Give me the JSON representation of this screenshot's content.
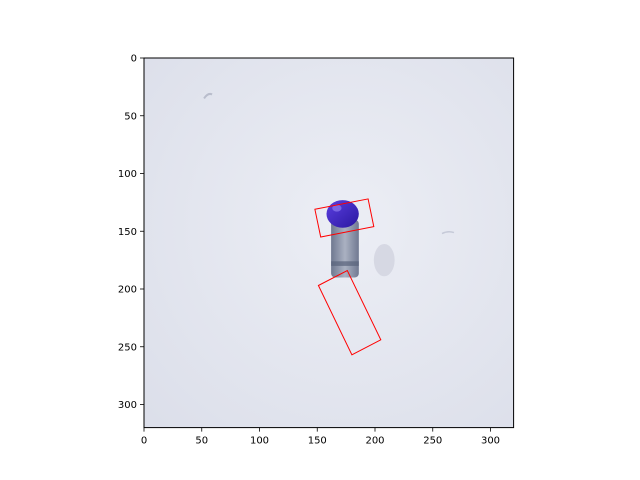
{
  "chart_data": {
    "type": "image",
    "title": "",
    "xlabel": "",
    "ylabel": "",
    "xlim": [
      0,
      320
    ],
    "ylim": [
      320,
      0
    ],
    "x_ticks": [
      0,
      50,
      100,
      150,
      200,
      250,
      300
    ],
    "y_ticks": [
      0,
      50,
      100,
      150,
      200,
      250,
      300
    ],
    "grid": false,
    "image_content": "photo of a small bottle with a blue cap standing on a white surface",
    "colors": {
      "background": "#e4e6ee",
      "bottle_cap": "#3a1fc4",
      "bottle_body": "#8b93a6",
      "box_stroke": "#ff0000"
    },
    "boxes": [
      {
        "name": "bottle-cap-box",
        "corners": [
          [
            148,
            131
          ],
          [
            194,
            122
          ],
          [
            199,
            146
          ],
          [
            153,
            155
          ]
        ]
      },
      {
        "name": "target-region-box",
        "corners": [
          [
            151,
            197
          ],
          [
            176,
            184
          ],
          [
            205,
            244
          ],
          [
            180,
            257
          ]
        ]
      }
    ]
  }
}
